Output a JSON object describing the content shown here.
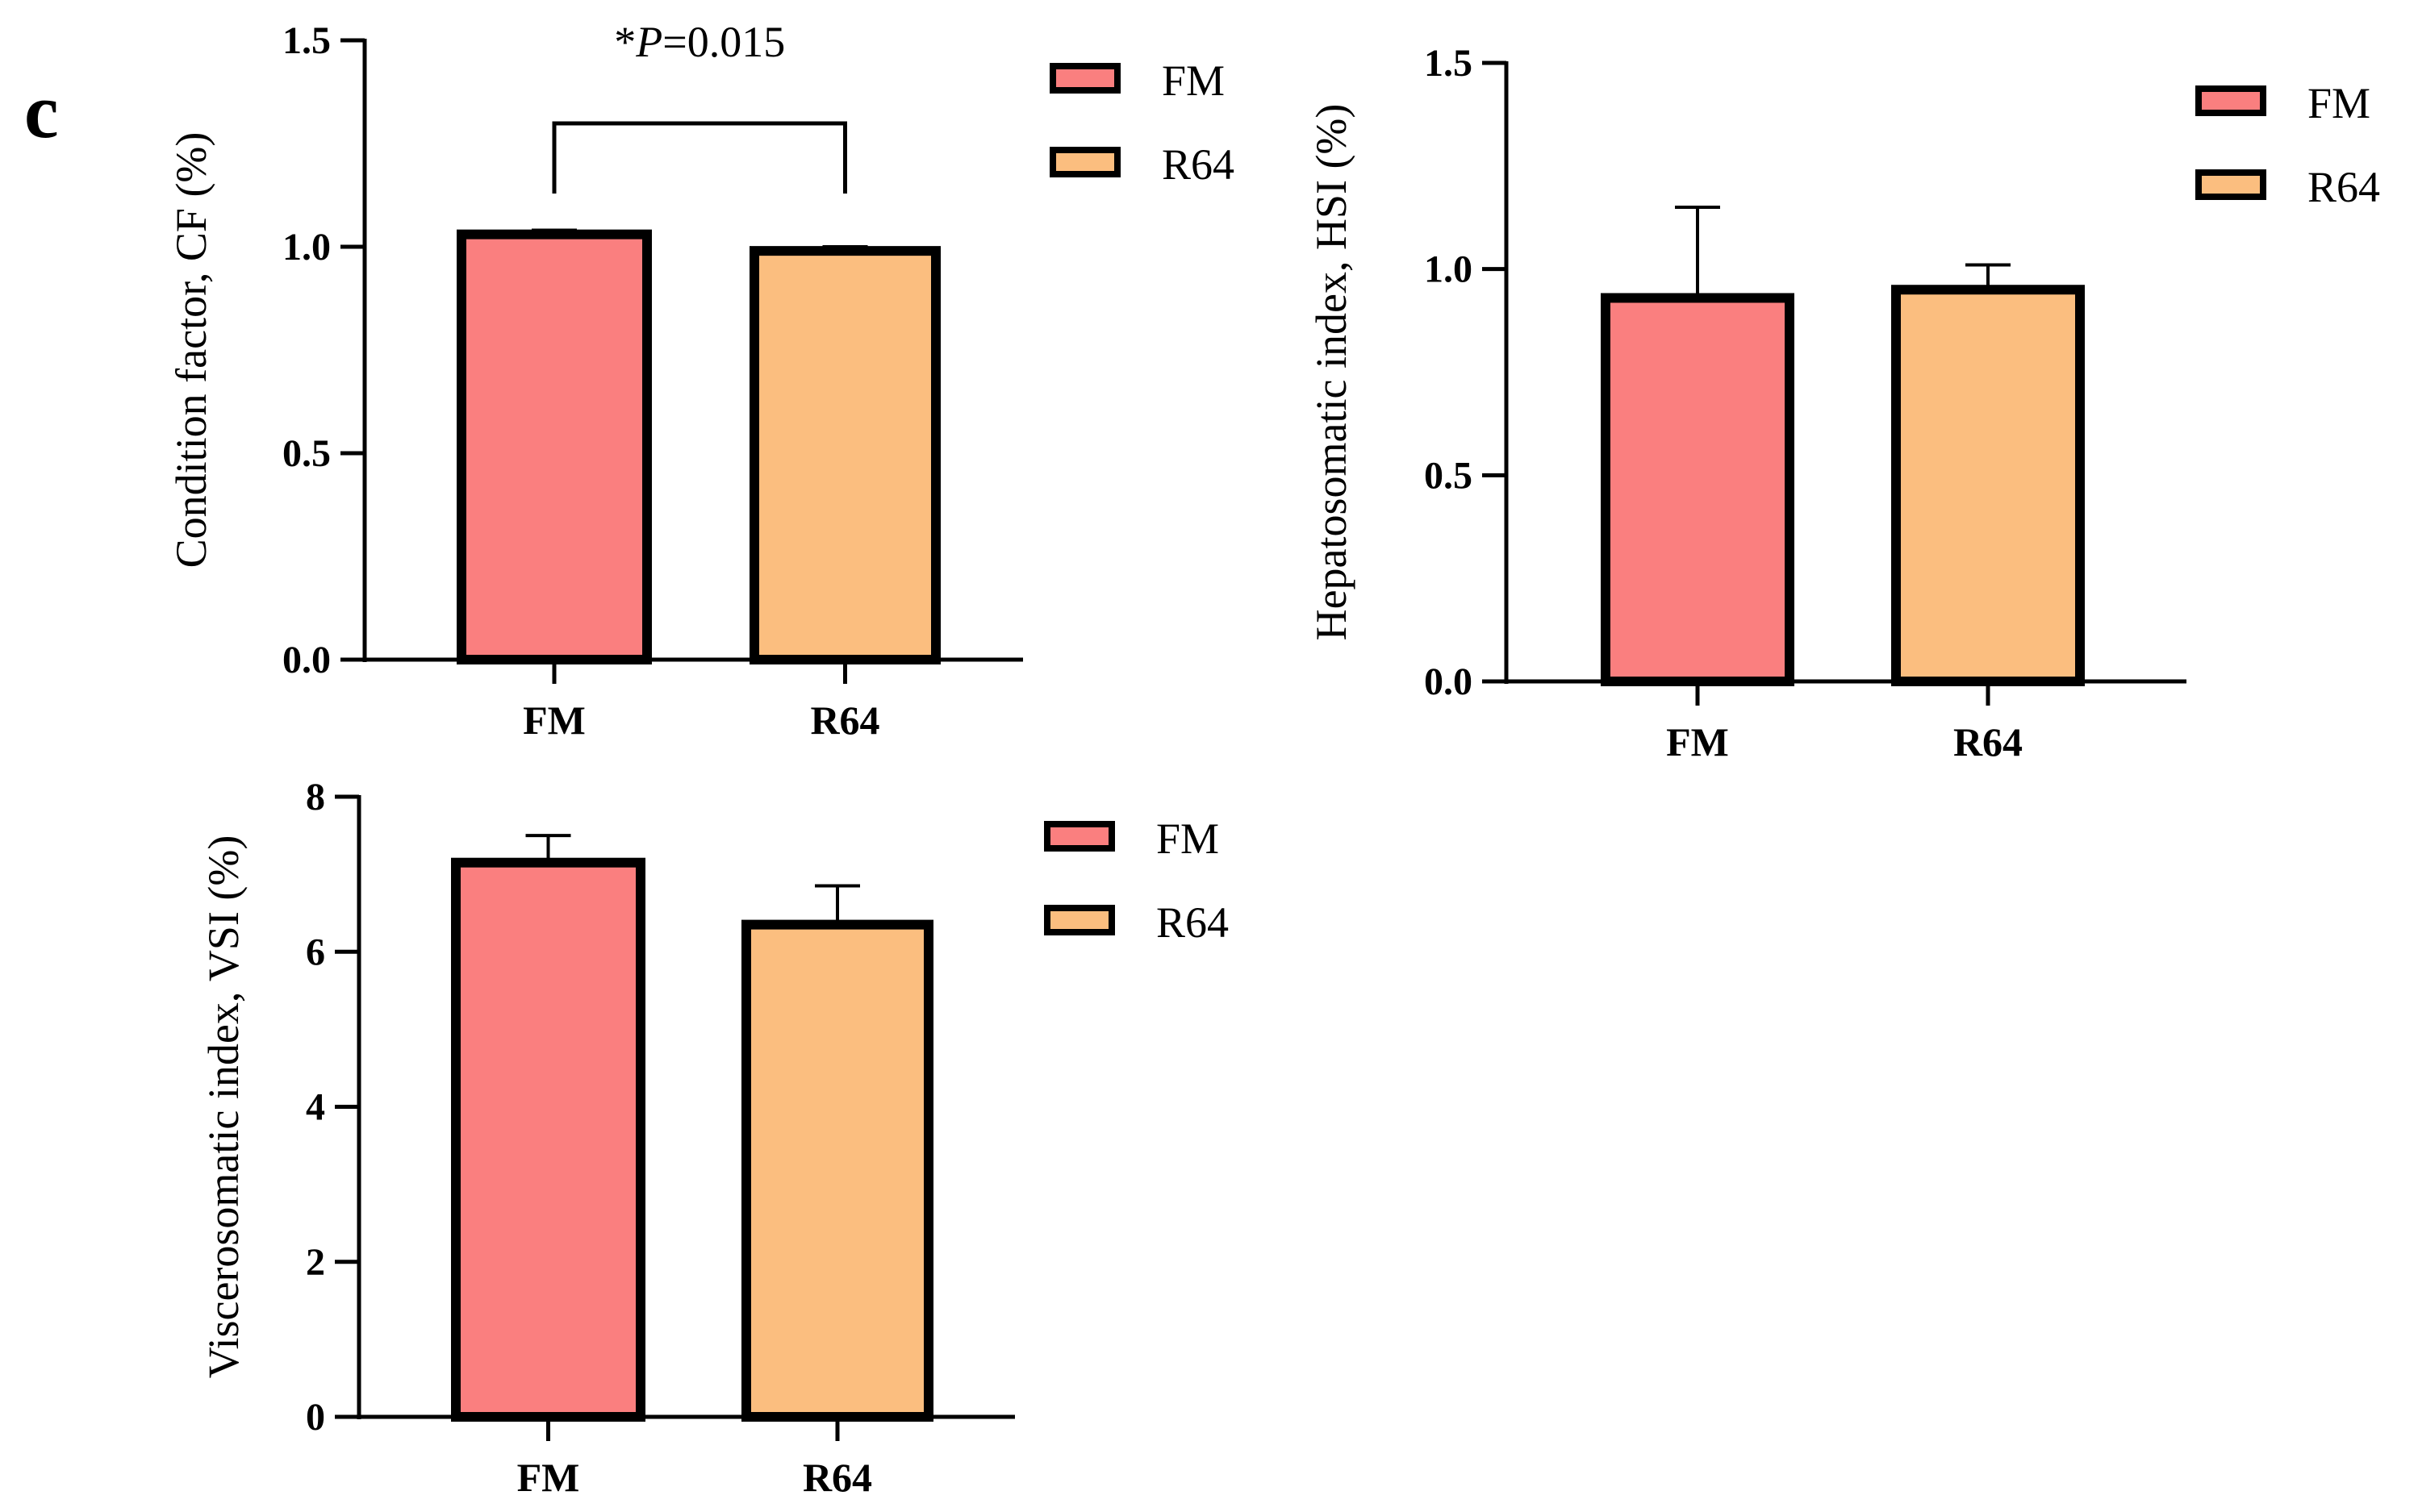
{
  "panel_label": "c",
  "colors": {
    "fm": "#fa7f7f",
    "r64": "#fbbe7f",
    "stroke": "#000000"
  },
  "chart_data": [
    {
      "id": "cf",
      "type": "bar",
      "ylabel": "Condition factor, CF (%)",
      "categories": [
        "FM",
        "R64"
      ],
      "series": [
        {
          "name": "FM",
          "value": 1.03,
          "error": 0.01
        },
        {
          "name": "R64",
          "value": 0.99,
          "error": 0.01
        }
      ],
      "ylim": [
        0,
        1.5
      ],
      "yticks": [
        0.0,
        0.5,
        1.0,
        1.5
      ],
      "ytick_labels": [
        "0.0",
        "0.5",
        "1.0",
        "1.5"
      ],
      "legend": [
        "FM",
        "R64"
      ],
      "legend_position": "right",
      "annotation": {
        "prefix": "*",
        "italic": "P",
        "suffix": "=0.015",
        "bracket": true
      }
    },
    {
      "id": "hsi",
      "type": "bar",
      "ylabel": "Hepatosomatic index, HSI (%)",
      "categories": [
        "FM",
        "R64"
      ],
      "series": [
        {
          "name": "FM",
          "value": 0.93,
          "error": 0.22
        },
        {
          "name": "R64",
          "value": 0.95,
          "error": 0.06
        }
      ],
      "ylim": [
        0,
        1.5
      ],
      "yticks": [
        0.0,
        0.5,
        1.0,
        1.5
      ],
      "ytick_labels": [
        "0.0",
        "0.5",
        "1.0",
        "1.5"
      ],
      "legend": [
        "FM",
        "R64"
      ],
      "legend_position": "right"
    },
    {
      "id": "vsi",
      "type": "bar",
      "ylabel": "Viscerosomatic index, VSI (%)",
      "categories": [
        "FM",
        "R64"
      ],
      "series": [
        {
          "name": "FM",
          "value": 7.15,
          "error": 0.35
        },
        {
          "name": "R64",
          "value": 6.35,
          "error": 0.5
        }
      ],
      "ylim": [
        0,
        8
      ],
      "yticks": [
        0,
        2,
        4,
        6,
        8
      ],
      "ytick_labels": [
        "0",
        "2",
        "4",
        "6",
        "8"
      ],
      "legend": [
        "FM",
        "R64"
      ],
      "legend_position": "right"
    }
  ]
}
